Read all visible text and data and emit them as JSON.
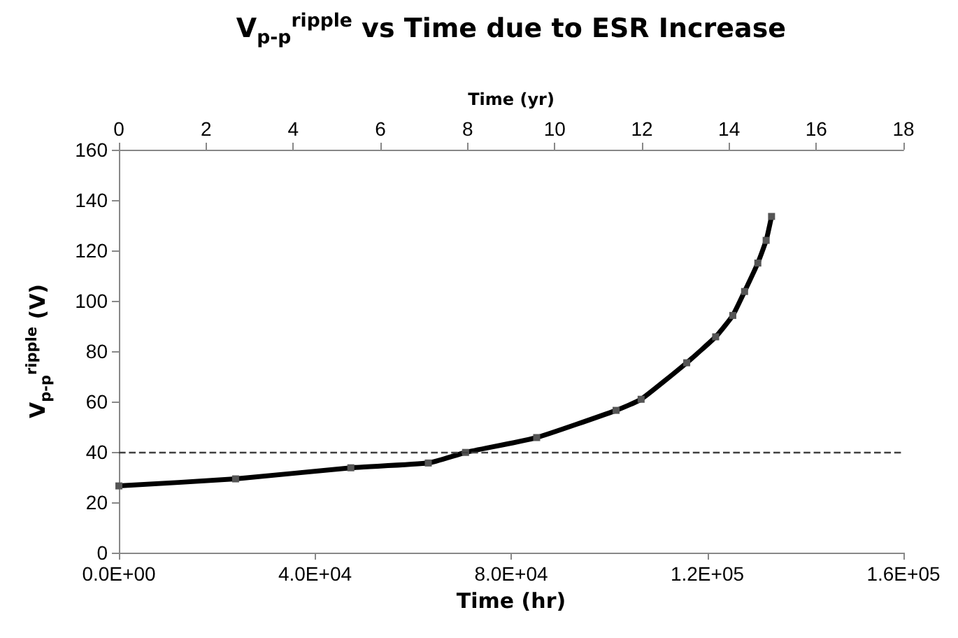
{
  "chart_data": {
    "type": "line",
    "title": "V$_{p-p}$$^{ripple}$ vs Time due to ESR Increase",
    "xlabel": "Time (hr)",
    "ylabel": "V$_{p-p}$$^{ripple}$  (V)",
    "x2label": "Time (yr)",
    "series": [
      {
        "color": "#000000",
        "x": [
          0,
          23800,
          47300,
          63100,
          70700,
          85200,
          101400,
          106500,
          115800,
          121700,
          125200,
          127600,
          130300,
          132000,
          133100
        ],
        "values": [
          26.5,
          29.3,
          33.7,
          35.6,
          39.8,
          45.7,
          56.5,
          60.9,
          75.4,
          85.7,
          94.2,
          103.7,
          115,
          124,
          133.5
        ]
      }
    ],
    "xlim": [
      0,
      160000
    ],
    "xticks": [
      {
        "value": 0,
        "label": "0.0E+00"
      },
      {
        "value": 40000,
        "label": "4.0E+04"
      },
      {
        "value": 80000,
        "label": "8.0E+04"
      },
      {
        "value": 120000,
        "label": "1.2E+05"
      },
      {
        "value": 160000,
        "label": "1.6E+05"
      }
    ],
    "x2lim": [
      0,
      18
    ],
    "x2ticks": [
      0,
      2,
      4,
      6,
      8,
      10,
      12,
      14,
      16,
      18
    ],
    "ylim": [
      0,
      160
    ],
    "yticks": [
      0,
      20,
      40,
      60,
      80,
      100,
      120,
      140,
      160
    ],
    "ref_lines": [
      {
        "axis": "y",
        "value": 40,
        "color": "#404040",
        "line_style": "dashed"
      }
    ],
    "grid": false,
    "marker": "square",
    "line_style": "solid"
  }
}
